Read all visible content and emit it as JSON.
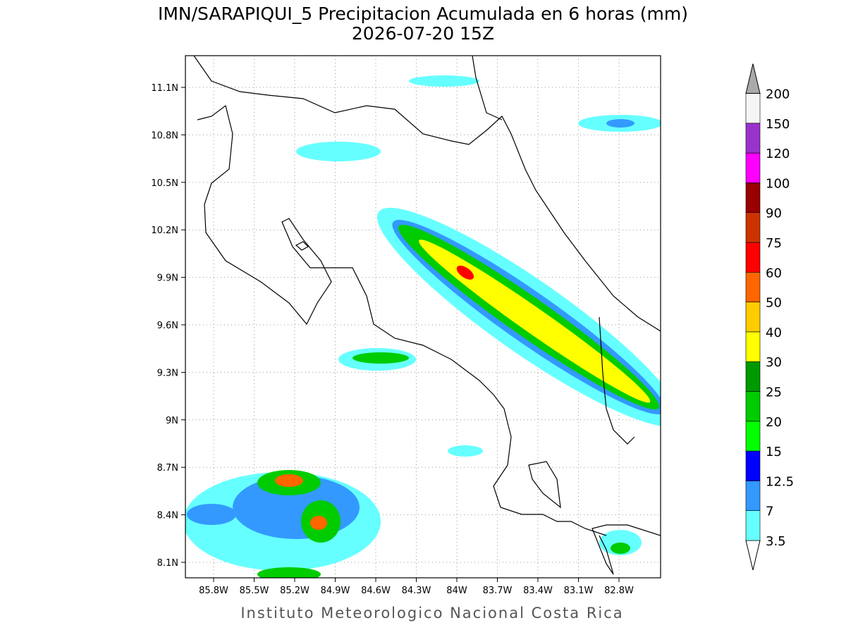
{
  "title": "IMN/SARAPIQUI_5 Precipitacion Acumulada en 6 horas (mm)",
  "subtitle": "2026-07-20 15Z",
  "footer": "Instituto Meteorologico Nacional Costa Rica",
  "map": {
    "lat_ticks": [
      "11.1N",
      "10.8N",
      "10.5N",
      "10.2N",
      "9.9N",
      "9.6N",
      "9.3N",
      "9N",
      "8.7N",
      "8.4N",
      "8.1N"
    ],
    "lon_ticks": [
      "85.8W",
      "85.5W",
      "85.2W",
      "84.9W",
      "84.6W",
      "84.3W",
      "84W",
      "83.7W",
      "83.4W",
      "83.1W",
      "82.8W"
    ],
    "grid": true
  },
  "colorbar": {
    "levels": [
      "3.5",
      "7",
      "12.5",
      "15",
      "20",
      "25",
      "30",
      "40",
      "50",
      "60",
      "75",
      "90",
      "100",
      "120",
      "150",
      "200"
    ],
    "colors": [
      "#ffffff",
      "#66ffff",
      "#3399ff",
      "#0000ff",
      "#00ff00",
      "#00cc00",
      "#009900",
      "#ffff00",
      "#ffcc00",
      "#ff6600",
      "#ff0000",
      "#cc3300",
      "#990000",
      "#ff00ff",
      "#9933cc",
      "#f5f5f5",
      "#aaaaaa"
    ]
  }
}
